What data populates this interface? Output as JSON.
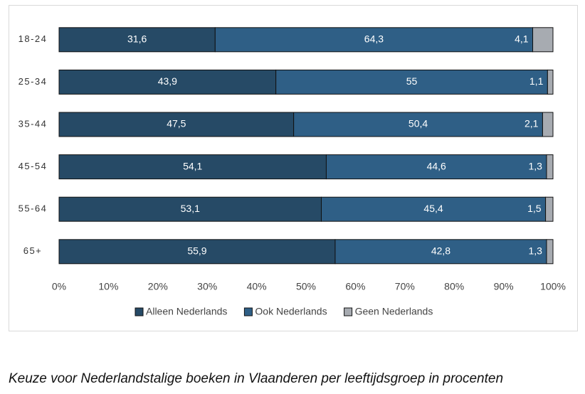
{
  "chart_data": {
    "type": "stacked-bar-horizontal",
    "categories": [
      "18-24",
      "25-34",
      "35-44",
      "45-54",
      "55-64",
      "65+"
    ],
    "series": [
      {
        "name": "Alleen Nederlands",
        "color": "#264a66",
        "values": [
          31.6,
          43.9,
          47.5,
          54.1,
          53.1,
          55.9
        ],
        "value_labels": [
          "31,6",
          "43,9",
          "47,5",
          "54,1",
          "53,1",
          "55,9"
        ]
      },
      {
        "name": "Ook Nederlands",
        "color": "#2f5f86",
        "values": [
          64.3,
          55,
          50.4,
          44.6,
          45.4,
          42.8
        ],
        "value_labels": [
          "64,3",
          "55",
          "50,4",
          "44,6",
          "45,4",
          "42,8"
        ]
      },
      {
        "name": "Geen Nederlands",
        "color": "#a7abb1",
        "values": [
          4.1,
          1.1,
          2.1,
          1.3,
          1.5,
          1.3
        ],
        "value_labels": [
          "4,1",
          "1,1",
          "2,1",
          "1,3",
          "1,5",
          "1,3"
        ]
      }
    ],
    "xlim": [
      0,
      100
    ],
    "xticks": [
      {
        "value": 0,
        "label": "0%"
      },
      {
        "value": 10,
        "label": "10%"
      },
      {
        "value": 20,
        "label": "20%"
      },
      {
        "value": 30,
        "label": "30%"
      },
      {
        "value": 40,
        "label": "40%"
      },
      {
        "value": 50,
        "label": "50%"
      },
      {
        "value": 60,
        "label": "60%"
      },
      {
        "value": 70,
        "label": "70%"
      },
      {
        "value": 80,
        "label": "80%"
      },
      {
        "value": 90,
        "label": "90%"
      },
      {
        "value": 100,
        "label": "100%"
      }
    ],
    "legend": "bottom",
    "caption": "Keuze voor Nederlandstalige boeken in Vlaanderen per leeftijdsgroep in procenten"
  }
}
